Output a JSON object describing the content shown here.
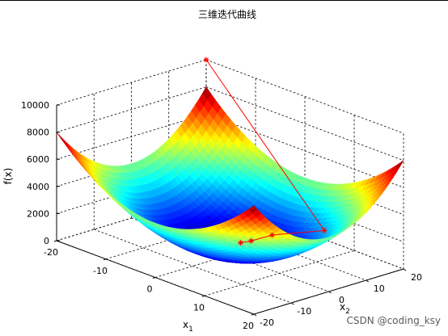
{
  "chart_data": {
    "type": "surface",
    "title": "三维迭代曲线",
    "xlabel": "x",
    "xlabel_sub": "1",
    "ylabel": "x",
    "ylabel_sub": "2",
    "zlabel": "f(x)",
    "xlim": [
      -20,
      20
    ],
    "ylim": [
      -20,
      20
    ],
    "zlim": [
      0,
      10000
    ],
    "x_ticks": [
      "-20",
      "-10",
      "0",
      "10",
      "20"
    ],
    "y_ticks": [
      "-20",
      "-10",
      "0",
      "10",
      "20"
    ],
    "z_ticks": [
      "0",
      "2000",
      "4000",
      "6000",
      "8000",
      "10000"
    ],
    "grid": true,
    "surface": {
      "function": "paraboloid",
      "colormap": "jet",
      "z_at_corners": {
        "x=-20,y=-20": 8000,
        "x=20,y=-20": 8000,
        "x=-20,y=20": 8000,
        "x=20,y=20": 8000
      },
      "minimum": {
        "x": 0,
        "y": 0,
        "z": 0
      }
    },
    "series": [
      {
        "marker": "*",
        "color": "#ff0000",
        "points": [
          {
            "x": -20,
            "y": 20,
            "z": 10000
          },
          {
            "x": 10,
            "y": 12,
            "z": 2150
          },
          {
            "x": 4,
            "y": 6,
            "z": 1500
          },
          {
            "x": 2,
            "y": 3,
            "z": 1050
          },
          {
            "x": 1,
            "y": 1.5,
            "z": 900
          }
        ]
      }
    ]
  },
  "watermark": "CSDN @coding_ksy"
}
